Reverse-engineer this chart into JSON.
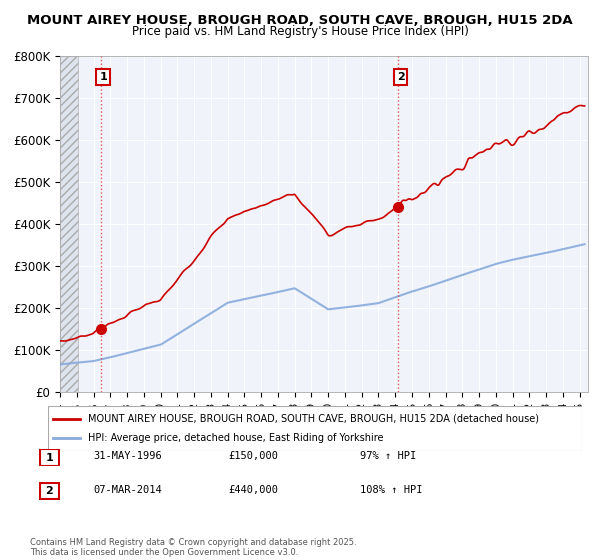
{
  "title": "MOUNT AIREY HOUSE, BROUGH ROAD, SOUTH CAVE, BROUGH, HU15 2DA",
  "subtitle": "Price paid vs. HM Land Registry's House Price Index (HPI)",
  "ylim": [
    0,
    800000
  ],
  "xlim_start": 1994.0,
  "xlim_end": 2025.5,
  "yticks": [
    0,
    100000,
    200000,
    300000,
    400000,
    500000,
    600000,
    700000,
    800000
  ],
  "ytick_labels": [
    "£0",
    "£100K",
    "£200K",
    "£300K",
    "£400K",
    "£500K",
    "£600K",
    "£700K",
    "£800K"
  ],
  "property_color": "#cc0000",
  "hpi_color": "#88aadd",
  "vline_color": "#dd4444",
  "marker_color": "#cc0000",
  "purchase1_x": 1996.42,
  "purchase1_y": 150000,
  "purchase1_label": "1",
  "purchase1_date": "31-MAY-1996",
  "purchase1_price": "£150,000",
  "purchase1_hpi": "97% ↑ HPI",
  "purchase2_x": 2014.18,
  "purchase2_y": 440000,
  "purchase2_label": "2",
  "purchase2_date": "07-MAR-2014",
  "purchase2_price": "£440,000",
  "purchase2_hpi": "108% ↑ HPI",
  "legend_property": "MOUNT AIREY HOUSE, BROUGH ROAD, SOUTH CAVE, BROUGH, HU15 2DA (detached house)",
  "legend_hpi": "HPI: Average price, detached house, East Riding of Yorkshire",
  "footnote": "Contains HM Land Registry data © Crown copyright and database right 2025.\nThis data is licensed under the Open Government Licence v3.0.",
  "hatch_end_x": 1995.08
}
